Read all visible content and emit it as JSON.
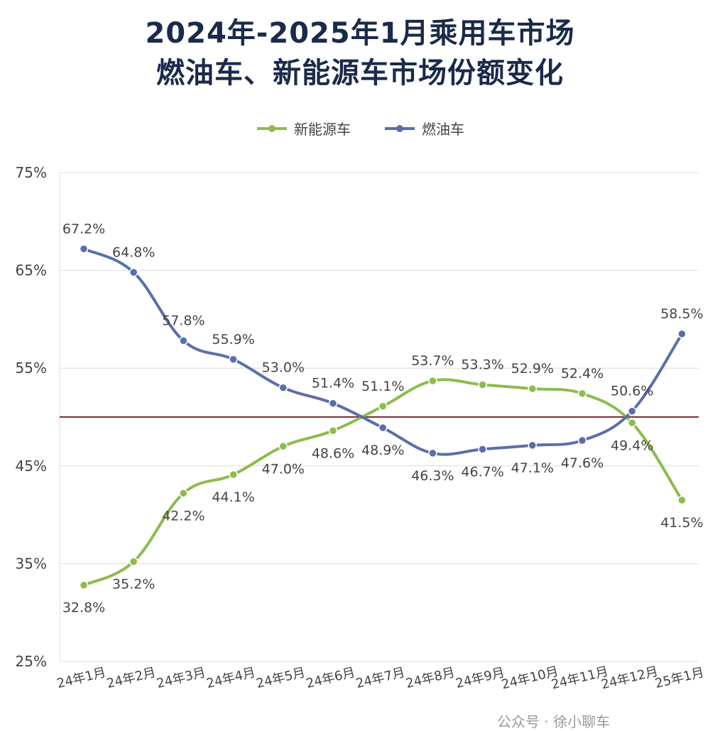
{
  "colors": {
    "green": "#8dbb4c",
    "blue": "#5b6ea8",
    "refline": "#7a3030",
    "grid": "#dcdcdc",
    "text": "#444444"
  },
  "chart_data": {
    "type": "line",
    "title": "2024年-2025年1月乘用车市场",
    "subtitle": "燃油车、新能源车市场份额变化",
    "categories": [
      "24年1月",
      "24年2月",
      "24年3月",
      "24年4月",
      "24年5月",
      "24年6月",
      "24年7月",
      "24年8月",
      "24年9月",
      "24年10月",
      "24年11月",
      "24年12月",
      "25年1月"
    ],
    "series": [
      {
        "name": "新能源车",
        "color": "#8dbb4c",
        "values": [
          32.8,
          35.2,
          42.2,
          44.1,
          47.0,
          48.6,
          51.1,
          53.7,
          53.3,
          52.9,
          52.4,
          49.4,
          41.5
        ],
        "labels": [
          "32.8%",
          "35.2%",
          "42.2%",
          "44.1%",
          "47.0%",
          "48.6%",
          "51.1%",
          "53.7%",
          "53.3%",
          "52.9%",
          "52.4%",
          "49.4%",
          "41.5%"
        ]
      },
      {
        "name": "燃油车",
        "color": "#5b6ea8",
        "values": [
          67.2,
          64.8,
          57.8,
          55.9,
          53.0,
          51.4,
          48.9,
          46.3,
          46.7,
          47.1,
          47.6,
          50.6,
          58.5
        ],
        "labels": [
          "67.2%",
          "64.8%",
          "57.8%",
          "55.9%",
          "53.0%",
          "51.4%",
          "48.9%",
          "46.3%",
          "46.7%",
          "47.1%",
          "47.6%",
          "50.6%",
          "58.5%"
        ]
      }
    ],
    "ylim": [
      25,
      75
    ],
    "yticks": [
      25,
      35,
      45,
      55,
      65,
      75
    ],
    "ytick_labels": [
      "25%",
      "35%",
      "45%",
      "55%",
      "65%",
      "75%"
    ],
    "reference_line": 50,
    "grid": true,
    "legend": "top-center"
  },
  "watermark": "公众号 · 徐小聊车"
}
